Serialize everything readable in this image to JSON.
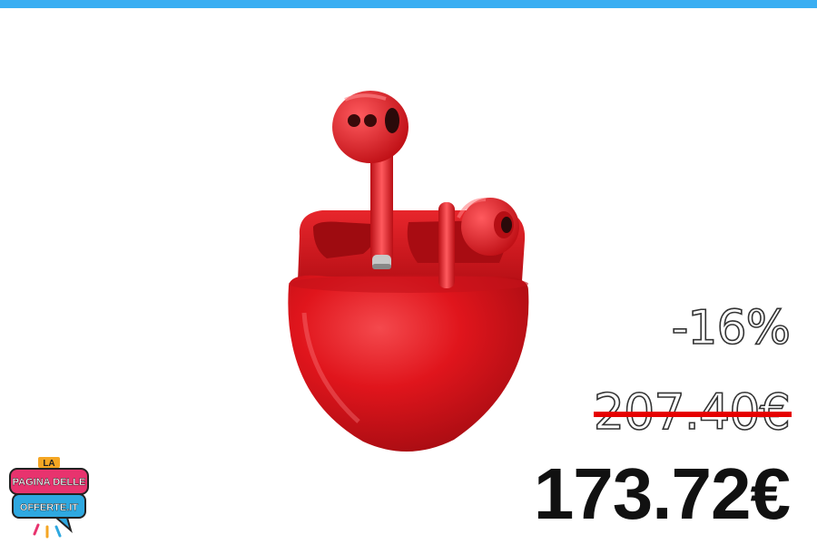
{
  "product": {
    "image_icon": "red-wireless-earbuds-with-charging-case",
    "colors": {
      "product_red": "#e0151c",
      "top_bar": "#3aaef2",
      "strike_red": "#e60000"
    }
  },
  "pricing": {
    "discount": "-16%",
    "old_price": "207.40€",
    "new_price": "173.72€"
  },
  "logo": {
    "line1": "LA",
    "line2": "PAGINA DELLE",
    "line3": "OFFERTE.IT"
  }
}
